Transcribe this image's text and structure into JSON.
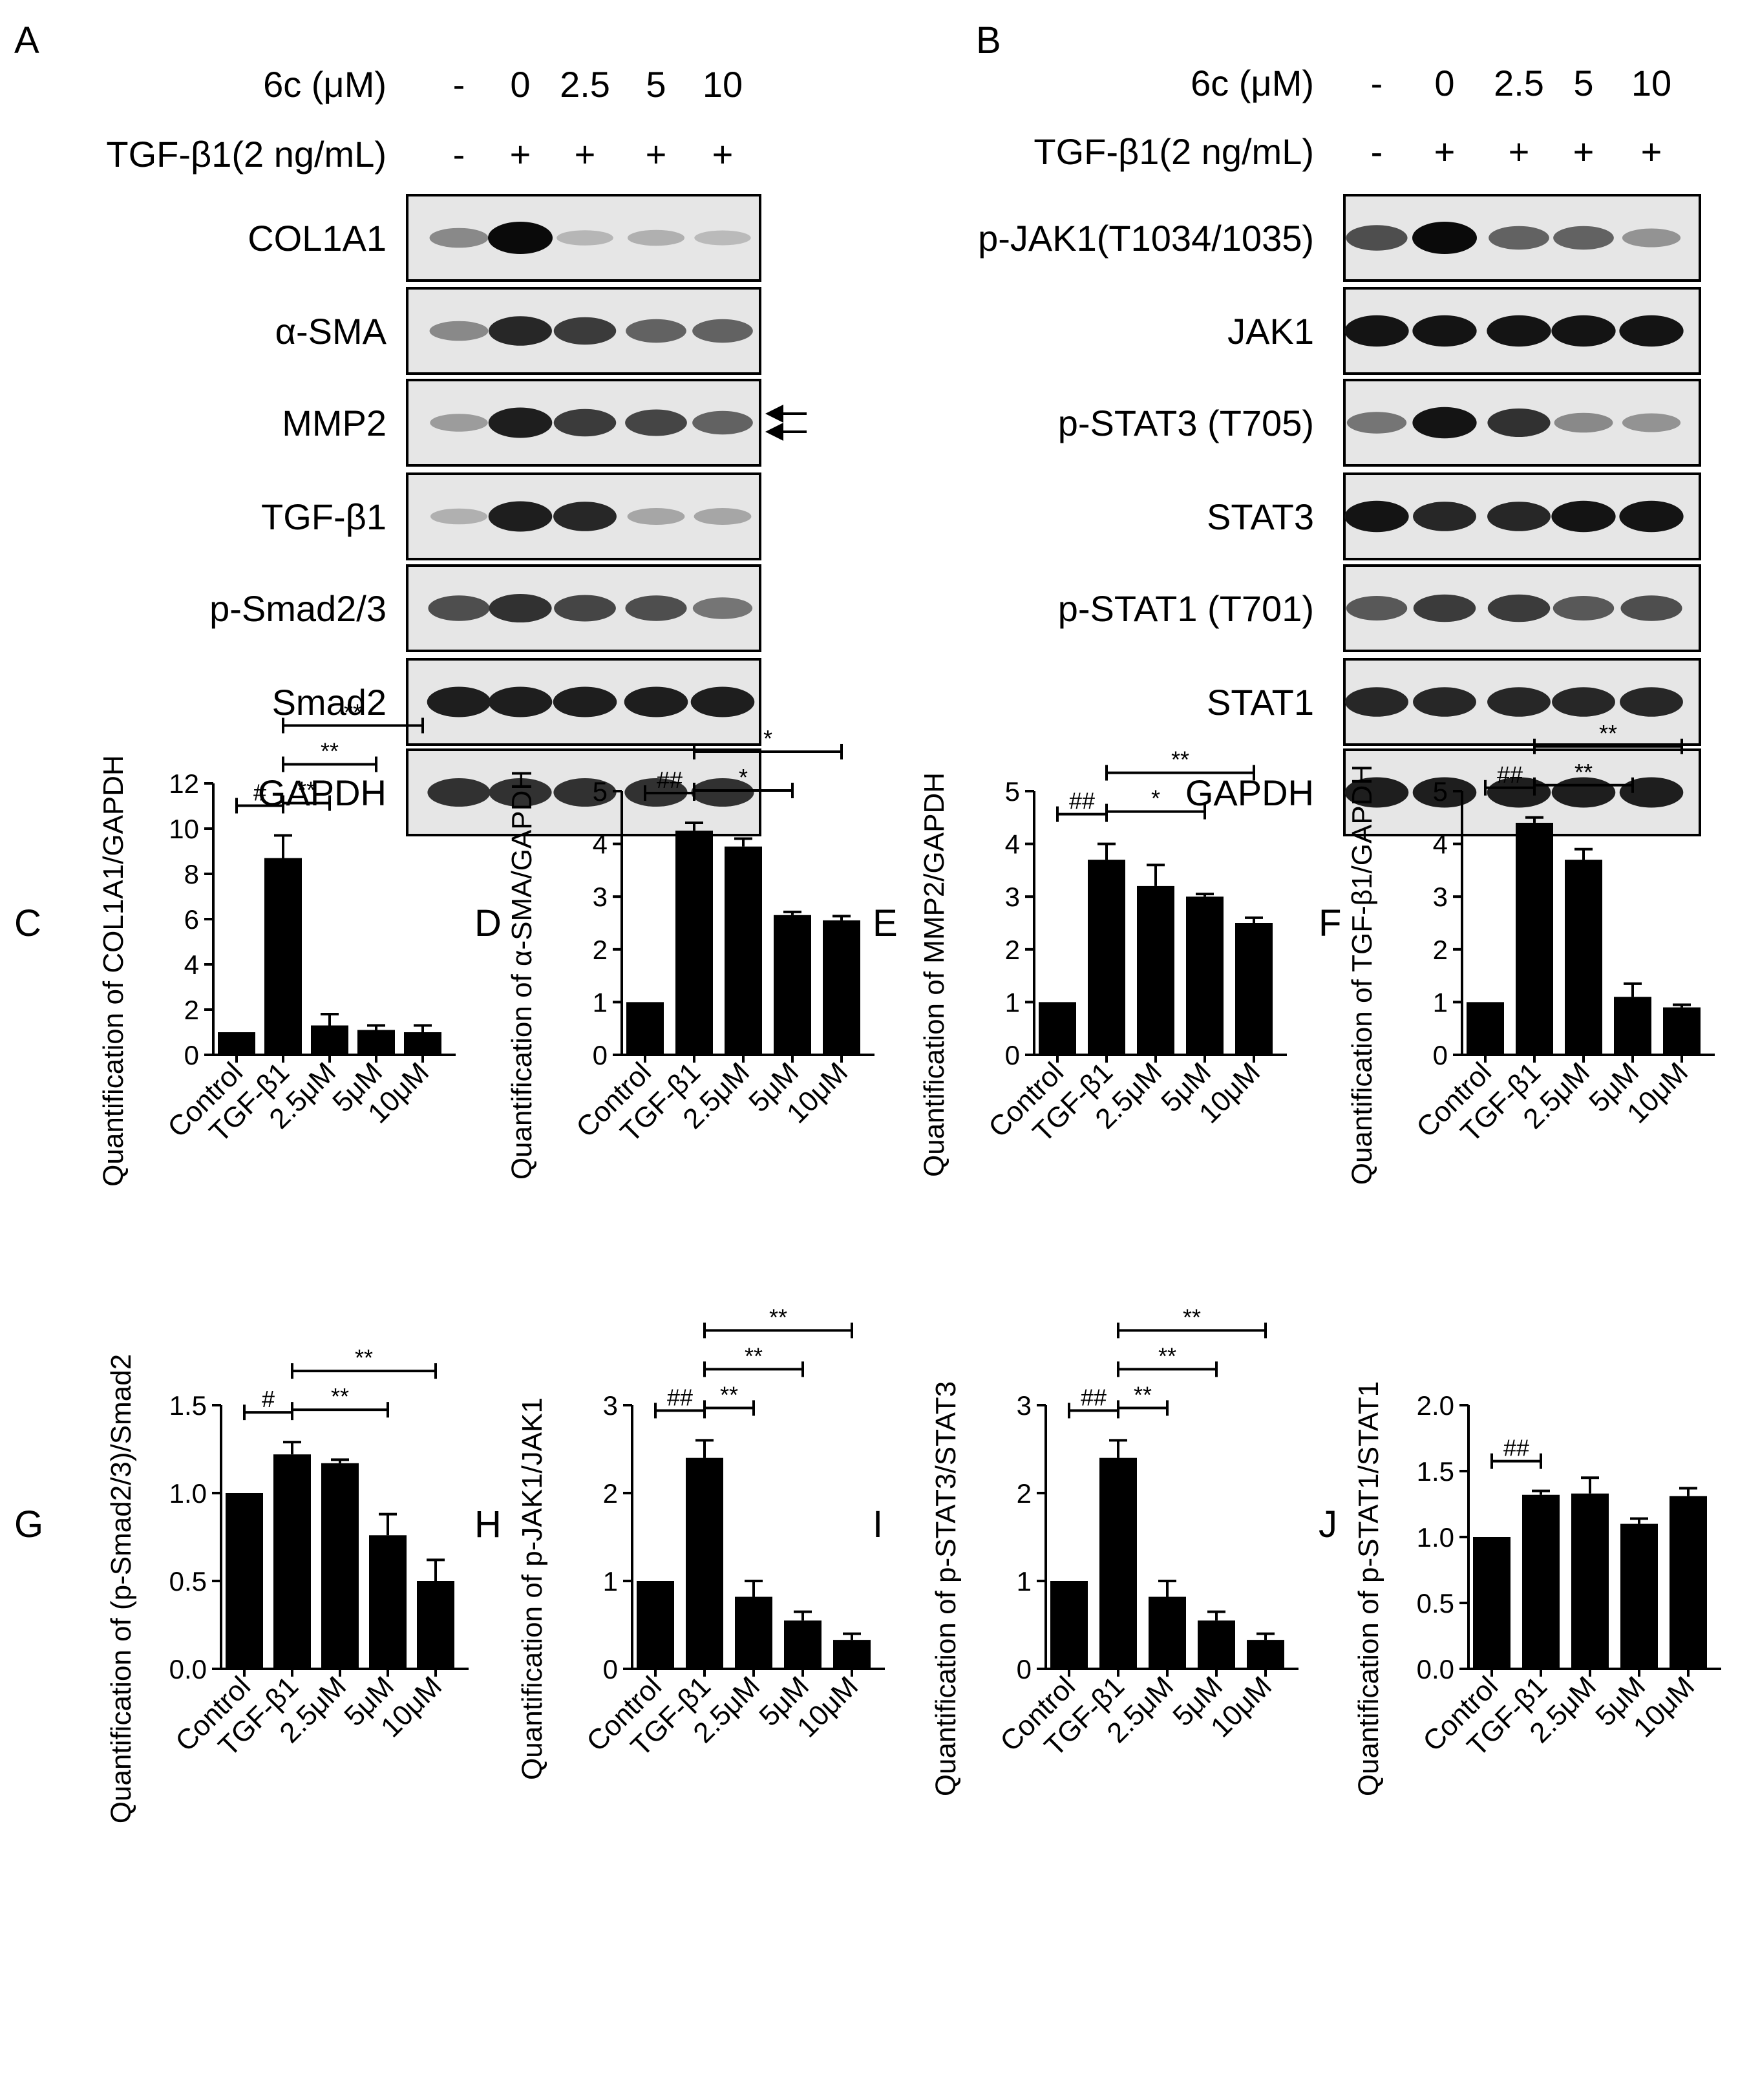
{
  "blot_panels": [
    {
      "letter": "A",
      "treatment_rows": [
        {
          "label": "6c (μM)",
          "values": [
            "-",
            "0",
            "2.5",
            "5",
            "10"
          ]
        },
        {
          "label": "TGF-β1(2 ng/mL)",
          "values": [
            "-",
            "+",
            "+",
            "+",
            "+"
          ]
        }
      ],
      "blots": [
        {
          "label": "COL1A1",
          "intensity": [
            0.35,
            1.0,
            0.12,
            0.15,
            0.1
          ]
        },
        {
          "label": "α-SMA",
          "intensity": [
            0.35,
            0.85,
            0.75,
            0.55,
            0.55
          ]
        },
        {
          "label": "MMP2",
          "intensity": [
            0.25,
            0.9,
            0.75,
            0.7,
            0.55
          ],
          "arrows": 2
        },
        {
          "label": "TGF-β1",
          "intensity": [
            0.15,
            0.9,
            0.85,
            0.2,
            0.2
          ]
        },
        {
          "label": "p-Smad2/3",
          "intensity": [
            0.65,
            0.8,
            0.7,
            0.65,
            0.45
          ]
        },
        {
          "label": "Smad2",
          "intensity": [
            0.9,
            0.9,
            0.9,
            0.9,
            0.9
          ]
        },
        {
          "label": "GAPDH",
          "intensity": [
            0.8,
            0.8,
            0.8,
            0.8,
            0.8
          ]
        }
      ]
    },
    {
      "letter": "B",
      "treatment_rows": [
        {
          "label": "6c (μM)",
          "values": [
            "-",
            "0",
            "2.5",
            "5",
            "10"
          ]
        },
        {
          "label": "TGF-β1(2 ng/mL)",
          "values": [
            "-",
            "+",
            "+",
            "+",
            "+"
          ]
        }
      ],
      "blots": [
        {
          "label": "p-JAK1(T1034/1035)",
          "intensity": [
            0.65,
            1.0,
            0.55,
            0.55,
            0.3
          ]
        },
        {
          "label": "JAK1",
          "intensity": [
            0.95,
            0.95,
            0.95,
            0.95,
            0.95
          ]
        },
        {
          "label": "p-STAT3 (T705)",
          "intensity": [
            0.45,
            0.95,
            0.8,
            0.35,
            0.3
          ]
        },
        {
          "label": "STAT3",
          "intensity": [
            0.95,
            0.85,
            0.85,
            0.95,
            0.95
          ]
        },
        {
          "label": "p-STAT1 (T701)",
          "intensity": [
            0.6,
            0.75,
            0.75,
            0.6,
            0.65
          ]
        },
        {
          "label": "STAT1",
          "intensity": [
            0.85,
            0.85,
            0.85,
            0.85,
            0.85
          ]
        },
        {
          "label": "GAPDH",
          "intensity": [
            0.9,
            0.9,
            0.9,
            0.9,
            0.9
          ]
        }
      ]
    }
  ],
  "chart_data": [
    {
      "letter": "C",
      "type": "bar",
      "title": "",
      "ylabel": "Quantification of COL1A1/GAPDH",
      "categories": [
        "Control",
        "TGF-β1",
        "2.5μM",
        "5μM",
        "10μM"
      ],
      "values": [
        1.0,
        8.7,
        1.3,
        1.1,
        1.0
      ],
      "errors": [
        0,
        1.0,
        0.5,
        0.2,
        0.3
      ],
      "ylim": [
        0,
        12
      ],
      "yticks": [
        "0",
        "2",
        "4",
        "6",
        "8",
        "10",
        "12"
      ],
      "significance": [
        {
          "from": 0,
          "to": 1,
          "label": "#"
        },
        {
          "from": 1,
          "to": 2,
          "label": "**"
        },
        {
          "from": 1,
          "to": 3,
          "label": "**"
        },
        {
          "from": 1,
          "to": 4,
          "label": "**"
        }
      ]
    },
    {
      "letter": "D",
      "type": "bar",
      "title": "",
      "ylabel": "Quantification of α-SMA/GAPDH",
      "categories": [
        "Control",
        "TGF-β1",
        "2.5μM",
        "5μM",
        "10μM"
      ],
      "values": [
        1.0,
        4.25,
        3.95,
        2.65,
        2.55
      ],
      "errors": [
        0,
        0.15,
        0.15,
        0.06,
        0.08
      ],
      "ylim": [
        0,
        5
      ],
      "yticks": [
        "0",
        "1",
        "2",
        "3",
        "4",
        "5"
      ],
      "significance": [
        {
          "from": 0,
          "to": 1,
          "label": "##"
        },
        {
          "from": 1,
          "to": 3,
          "label": "*"
        },
        {
          "from": 1,
          "to": 4,
          "label": "*"
        }
      ]
    },
    {
      "letter": "E",
      "type": "bar",
      "title": "",
      "ylabel": "Quantification of MMP2/GAPDH",
      "categories": [
        "Control",
        "TGF-β1",
        "2.5μM",
        "5μM",
        "10μM"
      ],
      "values": [
        1.0,
        3.7,
        3.2,
        3.0,
        2.5
      ],
      "errors": [
        0,
        0.3,
        0.4,
        0.05,
        0.1
      ],
      "ylim": [
        0,
        5
      ],
      "yticks": [
        "0",
        "1",
        "2",
        "3",
        "4",
        "5"
      ],
      "significance": [
        {
          "from": 0,
          "to": 1,
          "label": "##"
        },
        {
          "from": 1,
          "to": 3,
          "label": "*"
        },
        {
          "from": 1,
          "to": 4,
          "label": "**"
        }
      ]
    },
    {
      "letter": "F",
      "type": "bar",
      "title": "",
      "ylabel": "Quantification of TGF-β1/GAPDH",
      "categories": [
        "Control",
        "TGF-β1",
        "2.5μM",
        "5μM",
        "10μM"
      ],
      "values": [
        1.0,
        4.4,
        3.7,
        1.1,
        0.9
      ],
      "errors": [
        0,
        0.1,
        0.2,
        0.25,
        0.05
      ],
      "ylim": [
        0,
        5
      ],
      "yticks": [
        "0",
        "1",
        "2",
        "3",
        "4",
        "5"
      ],
      "significance": [
        {
          "from": 0,
          "to": 1,
          "label": "##"
        },
        {
          "from": 1,
          "to": 3,
          "label": "**"
        },
        {
          "from": 1,
          "to": 4,
          "label": "**"
        }
      ]
    },
    {
      "letter": "G",
      "type": "bar",
      "title": "",
      "ylabel": "Quantification of (p-Smad2/3)/Smad2",
      "categories": [
        "Control",
        "TGF-β1",
        "2.5μM",
        "5μM",
        "10μM"
      ],
      "values": [
        1.0,
        1.22,
        1.17,
        0.76,
        0.5
      ],
      "errors": [
        0,
        0.07,
        0.02,
        0.12,
        0.12
      ],
      "ylim": [
        0,
        1.5
      ],
      "yticks": [
        "0.0",
        "0.5",
        "1.0",
        "1.5"
      ],
      "significance": [
        {
          "from": 0,
          "to": 1,
          "label": "#"
        },
        {
          "from": 1,
          "to": 3,
          "label": "**"
        },
        {
          "from": 1,
          "to": 4,
          "label": "**"
        }
      ]
    },
    {
      "letter": "H",
      "type": "bar",
      "title": "",
      "ylabel": "Quantification of p-JAK1/JAK1",
      "categories": [
        "Control",
        "TGF-β1",
        "2.5μM",
        "5μM",
        "10μM"
      ],
      "values": [
        1.0,
        2.4,
        0.82,
        0.55,
        0.33
      ],
      "errors": [
        0,
        0.2,
        0.18,
        0.1,
        0.07
      ],
      "ylim": [
        0,
        3
      ],
      "yticks": [
        "0",
        "1",
        "2",
        "3"
      ],
      "significance": [
        {
          "from": 0,
          "to": 1,
          "label": "##"
        },
        {
          "from": 1,
          "to": 2,
          "label": "**"
        },
        {
          "from": 1,
          "to": 3,
          "label": "**"
        },
        {
          "from": 1,
          "to": 4,
          "label": "**"
        }
      ]
    },
    {
      "letter": "I",
      "type": "bar",
      "title": "",
      "ylabel": "Quantification of p-STAT3/STAT3",
      "categories": [
        "Control",
        "TGF-β1",
        "2.5μM",
        "5μM",
        "10μM"
      ],
      "values": [
        1.0,
        2.4,
        0.82,
        0.55,
        0.33
      ],
      "errors": [
        0,
        0.2,
        0.18,
        0.1,
        0.07
      ],
      "ylim": [
        0,
        3
      ],
      "yticks": [
        "0",
        "1",
        "2",
        "3"
      ],
      "significance": [
        {
          "from": 0,
          "to": 1,
          "label": "##"
        },
        {
          "from": 1,
          "to": 2,
          "label": "**"
        },
        {
          "from": 1,
          "to": 3,
          "label": "**"
        },
        {
          "from": 1,
          "to": 4,
          "label": "**"
        }
      ]
    },
    {
      "letter": "J",
      "type": "bar",
      "title": "",
      "ylabel": "Quantification of p-STAT1/STAT1",
      "categories": [
        "Control",
        "TGF-β1",
        "2.5μM",
        "5μM",
        "10μM"
      ],
      "values": [
        1.0,
        1.32,
        1.33,
        1.1,
        1.31
      ],
      "errors": [
        0,
        0.03,
        0.12,
        0.04,
        0.06
      ],
      "ylim": [
        0,
        2
      ],
      "yticks": [
        "0.0",
        "0.5",
        "1.0",
        "1.5",
        "2.0"
      ],
      "significance": [
        {
          "from": 0,
          "to": 1,
          "label": "##"
        }
      ]
    }
  ]
}
